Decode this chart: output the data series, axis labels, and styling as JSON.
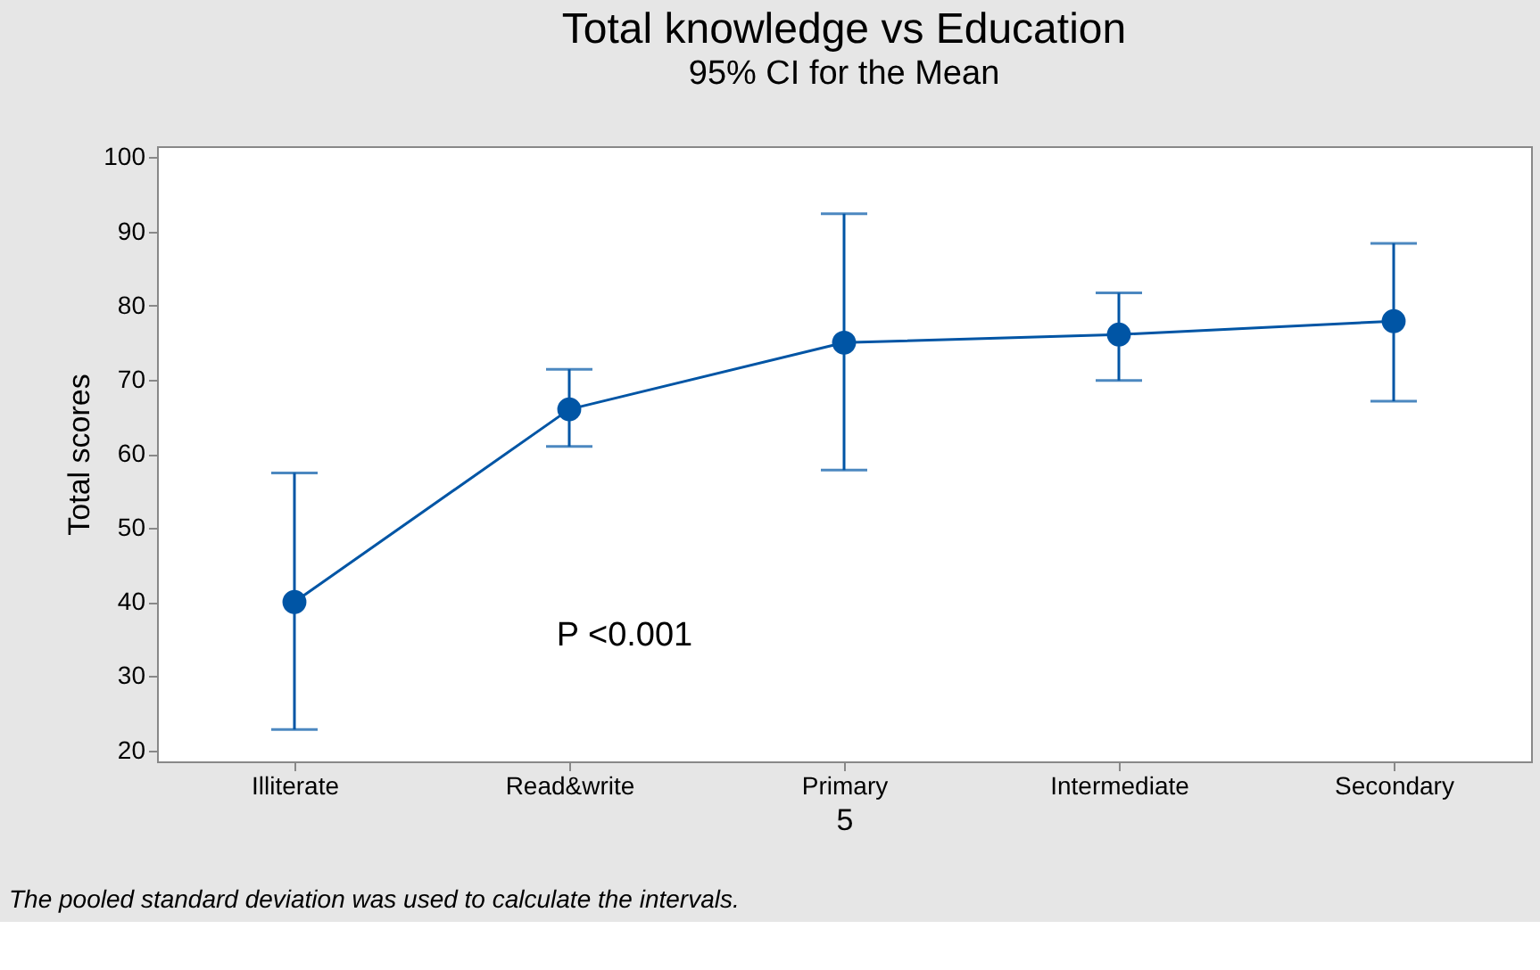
{
  "chart_data": {
    "type": "line",
    "title": "Total knowledge vs Education",
    "subtitle": "95% CI for the Mean",
    "xlabel": "5",
    "ylabel": "Total scores",
    "categories": [
      "Illiterate",
      "Read&write",
      "Primary",
      "Intermediate",
      "Secondary"
    ],
    "series": [
      {
        "color": "#0055a5",
        "values": [
          40,
          66,
          75,
          76.1,
          77.9
        ],
        "errors": [
          [
            22.8,
            57.4
          ],
          [
            61,
            71.4
          ],
          [
            57.8,
            92.4
          ],
          [
            69.9,
            81.7
          ],
          [
            67.1,
            88.4
          ]
        ]
      }
    ],
    "ylim": [
      18.5,
      101.5
    ],
    "yticks": [
      20,
      30,
      40,
      50,
      60,
      70,
      80,
      90,
      100
    ],
    "marker": "circle",
    "line_style": "solid",
    "grid": false,
    "annotations": [
      "P <0.001",
      "The pooled standard deviation was used to calculate the intervals."
    ]
  }
}
